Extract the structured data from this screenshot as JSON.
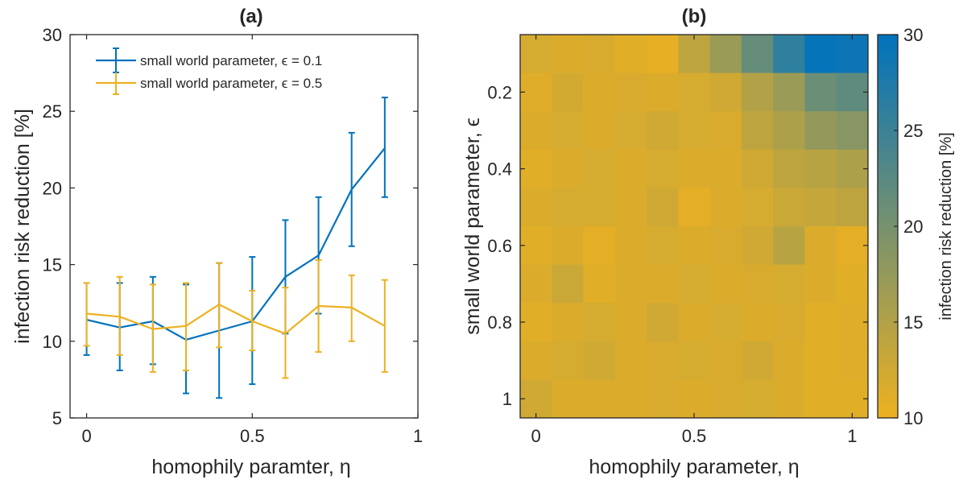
{
  "colors": {
    "blue": "#0072BD",
    "orange": "#EDB120",
    "axis": "#262626"
  },
  "chart_data": [
    {
      "type": "line",
      "title": "(a)",
      "xlabel": "homophily paramter, η",
      "ylabel": "infection risk reduction [%]",
      "xlim": [
        -0.05,
        1.0
      ],
      "ylim": [
        5,
        30
      ],
      "xticks": [
        0,
        0.5,
        1
      ],
      "xtick_labels": [
        "0",
        "0.5",
        "1"
      ],
      "yticks": [
        5,
        10,
        15,
        20,
        25,
        30
      ],
      "ytick_labels": [
        "5",
        "10",
        "15",
        "20",
        "25",
        "30"
      ],
      "legend_position": "top-right",
      "x": [
        0,
        0.1,
        0.2,
        0.3,
        0.4,
        0.5,
        0.6,
        0.7,
        0.8,
        0.9
      ],
      "series": [
        {
          "name": "small world parameter, ϵ = 0.1",
          "color": "#0072BD",
          "values": [
            11.4,
            10.9,
            11.3,
            10.1,
            10.7,
            11.3,
            14.2,
            15.6,
            19.9,
            22.6
          ],
          "err_low": [
            9.1,
            8.1,
            8.5,
            6.6,
            6.3,
            7.2,
            10.5,
            11.8,
            16.2,
            19.4
          ],
          "err_high": [
            13.8,
            13.8,
            14.2,
            13.7,
            15.1,
            15.5,
            17.9,
            19.4,
            23.6,
            25.9
          ]
        },
        {
          "name": "small world parameter, ϵ = 0.5",
          "color": "#EDB120",
          "values": [
            11.8,
            11.6,
            10.8,
            11.0,
            12.4,
            11.3,
            10.5,
            12.3,
            12.2,
            11.0
          ],
          "err_low": [
            9.7,
            9.1,
            8.0,
            8.1,
            9.6,
            9.4,
            7.6,
            9.3,
            10.0,
            8.0
          ],
          "err_high": [
            13.8,
            14.2,
            13.7,
            13.8,
            15.1,
            13.3,
            13.5,
            15.3,
            14.3,
            14.0
          ]
        }
      ]
    },
    {
      "type": "heatmap",
      "title": "(b)",
      "xlabel": "homophily parameter, η",
      "ylabel": "small world parameter, ϵ",
      "colorbar_label": "infection risk reduction [%]",
      "colorbar_ticks": [
        10,
        15,
        20,
        25,
        30
      ],
      "colorbar_tick_labels": [
        "10",
        "15",
        "20",
        "25",
        "30"
      ],
      "clim": [
        10,
        30
      ],
      "colormap": [
        "#EDB120",
        "#0072BD"
      ],
      "xlim": [
        -0.05,
        1.05
      ],
      "ylim": [
        0.05,
        1.05
      ],
      "y_reversed": true,
      "xticks": [
        0,
        0.5,
        1
      ],
      "xtick_labels": [
        "0",
        "0.5",
        "1"
      ],
      "yticks": [
        0.2,
        0.4,
        0.6,
        0.8,
        1
      ],
      "ytick_labels": [
        "0.2",
        "0.4",
        "0.6",
        "0.8",
        "1"
      ],
      "x_centers": [
        0,
        0.1,
        0.2,
        0.3,
        0.4,
        0.5,
        0.6,
        0.7,
        0.8,
        0.9,
        1.0
      ],
      "y_centers": [
        0.1,
        0.2,
        0.3,
        0.4,
        0.5,
        0.6,
        0.7,
        0.8,
        0.9,
        1.0
      ],
      "z": [
        [
          12.0,
          11.5,
          11.8,
          11.0,
          10.5,
          14.0,
          17.0,
          21.5,
          26.0,
          29.5,
          29.0
        ],
        [
          11.2,
          12.2,
          11.5,
          11.8,
          11.5,
          12.0,
          12.5,
          15.0,
          17.0,
          21.0,
          22.0
        ],
        [
          11.5,
          12.0,
          11.5,
          12.0,
          12.5,
          12.0,
          11.8,
          14.0,
          15.5,
          17.5,
          18.5
        ],
        [
          11.0,
          11.5,
          12.0,
          11.5,
          12.0,
          11.5,
          11.5,
          12.5,
          14.0,
          14.5,
          15.5
        ],
        [
          11.5,
          12.0,
          12.0,
          11.5,
          12.5,
          10.8,
          11.5,
          12.0,
          13.0,
          13.5,
          14.0
        ],
        [
          11.0,
          11.5,
          10.8,
          11.5,
          12.0,
          11.5,
          11.8,
          12.5,
          14.5,
          11.5,
          10.8
        ],
        [
          11.5,
          13.0,
          11.0,
          11.5,
          11.5,
          12.0,
          11.5,
          11.8,
          12.0,
          11.5,
          11.0
        ],
        [
          11.0,
          11.5,
          12.0,
          11.5,
          12.5,
          11.5,
          12.0,
          11.5,
          11.8,
          11.0,
          11.2
        ],
        [
          11.5,
          12.0,
          12.5,
          11.5,
          11.8,
          12.0,
          11.8,
          12.5,
          11.5,
          11.0,
          11.2
        ],
        [
          12.5,
          11.5,
          11.5,
          11.5,
          11.8,
          11.5,
          11.8,
          12.0,
          11.5,
          11.0,
          11.0
        ]
      ]
    }
  ]
}
